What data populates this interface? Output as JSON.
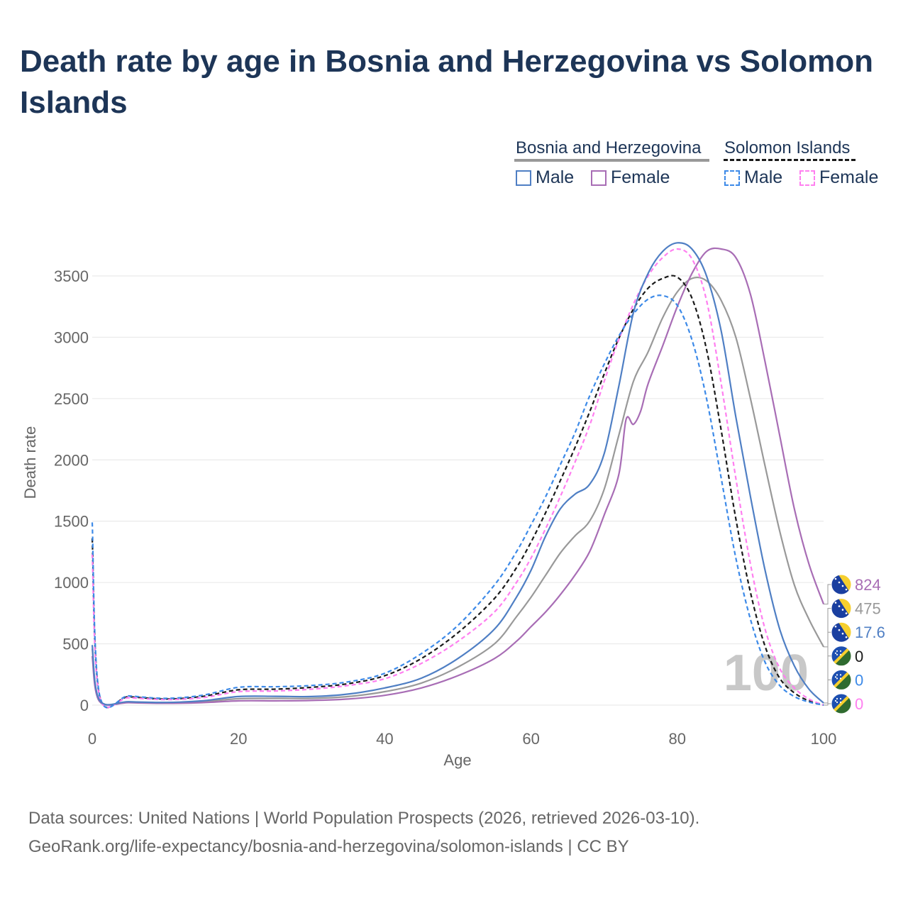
{
  "title": "Death rate by age in Bosnia and Herzegovina vs Solomon Islands",
  "legend": {
    "groups": [
      {
        "name": "Bosnia and Herzegovina",
        "style": "solid"
      },
      {
        "name": "Solomon Islands",
        "style": "dashed"
      }
    ],
    "items": {
      "bih_male": "Male",
      "bih_female": "Female",
      "sol_male": "Male",
      "sol_female": "Female"
    }
  },
  "colors": {
    "bih_male": "#4f7fc4",
    "bih_female": "#a86db5",
    "bih_total": "#999999",
    "sol_male": "#3d8ae8",
    "sol_female": "#ff7ff0",
    "sol_total": "#1a1a1a",
    "title": "#1d3557",
    "axis_text": "#666666",
    "grid": "#e6e6e6"
  },
  "chart_data": {
    "type": "line",
    "title": "Death rate by age in Bosnia and Herzegovina vs Solomon Islands",
    "xlabel": "Age",
    "ylabel": "Death rate",
    "xlim": [
      0,
      100
    ],
    "ylim": [
      0,
      3800
    ],
    "xticks": [
      0,
      20,
      40,
      60,
      80,
      100
    ],
    "yticks": [
      0,
      500,
      1000,
      1500,
      2000,
      2500,
      3000,
      3500
    ],
    "watermark": "100",
    "series": [
      {
        "key": "bih_male",
        "name": "Bosnia and Herzegovina Male",
        "dash": false,
        "points": [
          [
            0,
            490
          ],
          [
            1,
            40
          ],
          [
            5,
            28
          ],
          [
            10,
            22
          ],
          [
            15,
            35
          ],
          [
            20,
            70
          ],
          [
            25,
            72
          ],
          [
            30,
            70
          ],
          [
            35,
            90
          ],
          [
            40,
            140
          ],
          [
            45,
            220
          ],
          [
            50,
            380
          ],
          [
            55,
            620
          ],
          [
            58,
            880
          ],
          [
            60,
            1100
          ],
          [
            62,
            1380
          ],
          [
            64,
            1600
          ],
          [
            66,
            1720
          ],
          [
            68,
            1800
          ],
          [
            70,
            2050
          ],
          [
            72,
            2600
          ],
          [
            74,
            3200
          ],
          [
            76,
            3520
          ],
          [
            78,
            3700
          ],
          [
            80,
            3770
          ],
          [
            82,
            3720
          ],
          [
            84,
            3500
          ],
          [
            86,
            3050
          ],
          [
            88,
            2350
          ],
          [
            90,
            1700
          ],
          [
            92,
            1100
          ],
          [
            94,
            620
          ],
          [
            96,
            320
          ],
          [
            98,
            130
          ],
          [
            100,
            17.6
          ]
        ],
        "end_label": "17.6"
      },
      {
        "key": "bih_female",
        "name": "Bosnia and Herzegovina Female",
        "dash": false,
        "points": [
          [
            0,
            400
          ],
          [
            1,
            30
          ],
          [
            5,
            20
          ],
          [
            10,
            15
          ],
          [
            15,
            20
          ],
          [
            20,
            35
          ],
          [
            25,
            35
          ],
          [
            30,
            38
          ],
          [
            35,
            50
          ],
          [
            40,
            80
          ],
          [
            45,
            140
          ],
          [
            50,
            240
          ],
          [
            55,
            380
          ],
          [
            58,
            520
          ],
          [
            60,
            640
          ],
          [
            62,
            760
          ],
          [
            64,
            900
          ],
          [
            66,
            1060
          ],
          [
            68,
            1250
          ],
          [
            70,
            1550
          ],
          [
            72,
            1880
          ],
          [
            73,
            2330
          ],
          [
            74,
            2290
          ],
          [
            75,
            2400
          ],
          [
            76,
            2620
          ],
          [
            78,
            2930
          ],
          [
            80,
            3250
          ],
          [
            82,
            3520
          ],
          [
            84,
            3700
          ],
          [
            86,
            3720
          ],
          [
            88,
            3650
          ],
          [
            90,
            3350
          ],
          [
            92,
            2800
          ],
          [
            94,
            2200
          ],
          [
            96,
            1600
          ],
          [
            98,
            1150
          ],
          [
            100,
            824
          ]
        ],
        "end_label": "824"
      },
      {
        "key": "bih_total",
        "name": "Bosnia and Herzegovina Total",
        "dash": false,
        "points": [
          [
            0,
            460
          ],
          [
            1,
            35
          ],
          [
            5,
            24
          ],
          [
            10,
            19
          ],
          [
            15,
            28
          ],
          [
            20,
            52
          ],
          [
            25,
            55
          ],
          [
            30,
            55
          ],
          [
            35,
            70
          ],
          [
            40,
            110
          ],
          [
            45,
            180
          ],
          [
            50,
            310
          ],
          [
            55,
            500
          ],
          [
            58,
            720
          ],
          [
            60,
            880
          ],
          [
            62,
            1060
          ],
          [
            64,
            1240
          ],
          [
            66,
            1380
          ],
          [
            68,
            1500
          ],
          [
            70,
            1760
          ],
          [
            72,
            2200
          ],
          [
            74,
            2640
          ],
          [
            76,
            2880
          ],
          [
            78,
            3160
          ],
          [
            80,
            3370
          ],
          [
            82,
            3480
          ],
          [
            84,
            3460
          ],
          [
            86,
            3300
          ],
          [
            88,
            3000
          ],
          [
            90,
            2500
          ],
          [
            92,
            1950
          ],
          [
            94,
            1420
          ],
          [
            96,
            980
          ],
          [
            98,
            700
          ],
          [
            100,
            475
          ]
        ],
        "end_label": "475"
      },
      {
        "key": "sol_male",
        "name": "Solomon Islands Male",
        "dash": true,
        "points": [
          [
            0,
            1490
          ],
          [
            1,
            85
          ],
          [
            5,
            75
          ],
          [
            10,
            55
          ],
          [
            15,
            80
          ],
          [
            20,
            145
          ],
          [
            25,
            150
          ],
          [
            30,
            160
          ],
          [
            35,
            190
          ],
          [
            40,
            260
          ],
          [
            45,
            420
          ],
          [
            50,
            650
          ],
          [
            55,
            980
          ],
          [
            58,
            1250
          ],
          [
            60,
            1470
          ],
          [
            62,
            1700
          ],
          [
            64,
            1960
          ],
          [
            66,
            2220
          ],
          [
            68,
            2520
          ],
          [
            70,
            2780
          ],
          [
            72,
            3010
          ],
          [
            74,
            3190
          ],
          [
            76,
            3310
          ],
          [
            78,
            3340
          ],
          [
            80,
            3260
          ],
          [
            82,
            2980
          ],
          [
            84,
            2500
          ],
          [
            86,
            1850
          ],
          [
            88,
            1200
          ],
          [
            90,
            700
          ],
          [
            92,
            350
          ],
          [
            94,
            160
          ],
          [
            96,
            70
          ],
          [
            98,
            25
          ],
          [
            100,
            0
          ]
        ],
        "end_label": "0"
      },
      {
        "key": "sol_female",
        "name": "Solomon Islands Female",
        "dash": true,
        "points": [
          [
            0,
            1230
          ],
          [
            1,
            70
          ],
          [
            5,
            60
          ],
          [
            10,
            45
          ],
          [
            15,
            60
          ],
          [
            20,
            110
          ],
          [
            25,
            115
          ],
          [
            30,
            130
          ],
          [
            35,
            160
          ],
          [
            40,
            215
          ],
          [
            45,
            340
          ],
          [
            50,
            520
          ],
          [
            55,
            760
          ],
          [
            58,
            1000
          ],
          [
            60,
            1200
          ],
          [
            62,
            1440
          ],
          [
            64,
            1700
          ],
          [
            66,
            1980
          ],
          [
            68,
            2280
          ],
          [
            70,
            2640
          ],
          [
            72,
            2980
          ],
          [
            74,
            3270
          ],
          [
            76,
            3500
          ],
          [
            78,
            3650
          ],
          [
            80,
            3720
          ],
          [
            82,
            3640
          ],
          [
            84,
            3300
          ],
          [
            86,
            2620
          ],
          [
            88,
            1850
          ],
          [
            90,
            1150
          ],
          [
            92,
            620
          ],
          [
            94,
            300
          ],
          [
            96,
            140
          ],
          [
            98,
            50
          ],
          [
            100,
            0
          ]
        ],
        "end_label": "0"
      },
      {
        "key": "sol_total",
        "name": "Solomon Islands Total",
        "dash": true,
        "points": [
          [
            0,
            1360
          ],
          [
            1,
            78
          ],
          [
            5,
            68
          ],
          [
            10,
            50
          ],
          [
            15,
            70
          ],
          [
            20,
            125
          ],
          [
            25,
            130
          ],
          [
            30,
            145
          ],
          [
            35,
            175
          ],
          [
            40,
            240
          ],
          [
            45,
            380
          ],
          [
            50,
            590
          ],
          [
            55,
            870
          ],
          [
            58,
            1120
          ],
          [
            60,
            1330
          ],
          [
            62,
            1570
          ],
          [
            64,
            1830
          ],
          [
            66,
            2100
          ],
          [
            68,
            2390
          ],
          [
            70,
            2700
          ],
          [
            72,
            2990
          ],
          [
            74,
            3230
          ],
          [
            76,
            3400
          ],
          [
            78,
            3480
          ],
          [
            80,
            3490
          ],
          [
            82,
            3320
          ],
          [
            84,
            2900
          ],
          [
            86,
            2240
          ],
          [
            88,
            1520
          ],
          [
            90,
            920
          ],
          [
            92,
            480
          ],
          [
            94,
            220
          ],
          [
            96,
            100
          ],
          [
            98,
            35
          ],
          [
            100,
            0
          ]
        ],
        "end_label": "0"
      }
    ]
  },
  "footer": {
    "line1": "Data sources: United Nations | World Population Prospects (2026, retrieved 2026-03-10).",
    "line2": "GeoRank.org/life-expectancy/bosnia-and-herzegovina/solomon-islands | CC BY"
  }
}
